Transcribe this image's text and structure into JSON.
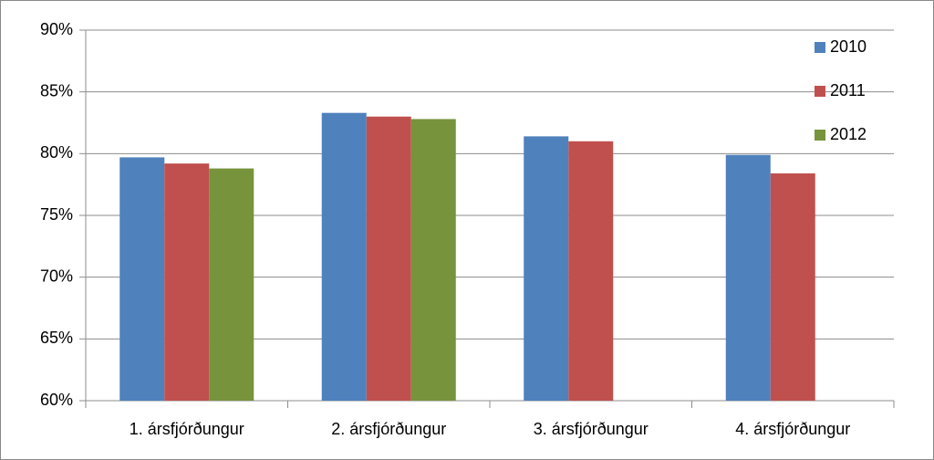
{
  "chart_data": {
    "type": "bar",
    "categories": [
      "1. ársfjórðungur",
      "2. ársfjórðungur",
      "3. ársfjórðungur",
      "4. ársfjórðungur"
    ],
    "series": [
      {
        "name": "2010",
        "color": "#4f81bd",
        "values": [
          79.7,
          83.3,
          81.4,
          79.9
        ]
      },
      {
        "name": "2011",
        "color": "#c0504d",
        "values": [
          79.2,
          83.0,
          81.0,
          78.4
        ]
      },
      {
        "name": "2012",
        "color": "#77933c",
        "values": [
          78.8,
          82.8,
          null,
          null
        ]
      }
    ],
    "ylim": [
      60,
      90
    ],
    "yticks": [
      {
        "value": 60,
        "label": "60%"
      },
      {
        "value": 65,
        "label": "65%"
      },
      {
        "value": 70,
        "label": "70%"
      },
      {
        "value": 75,
        "label": "75%"
      },
      {
        "value": 80,
        "label": "80%"
      },
      {
        "value": 85,
        "label": "85%"
      },
      {
        "value": 90,
        "label": "90%"
      }
    ],
    "grid": true,
    "legend": "right"
  }
}
